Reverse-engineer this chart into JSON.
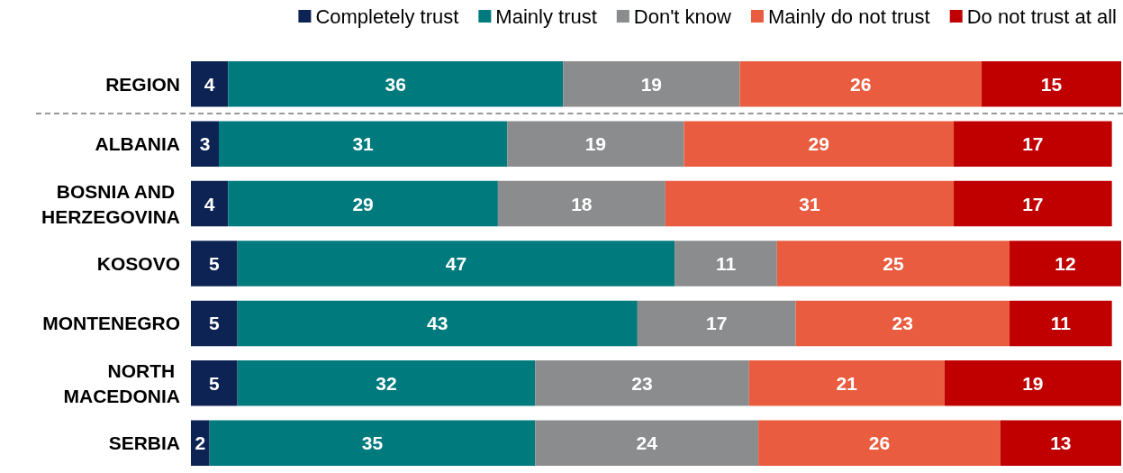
{
  "chart_data": {
    "type": "bar",
    "orientation": "horizontal",
    "stacked": true,
    "categories": [
      "REGION",
      "ALBANIA",
      "BOSNIA AND HERZEGOVINA",
      "KOSOVO",
      "MONTENEGRO",
      "NORTH MACEDONIA",
      "SERBIA"
    ],
    "series": [
      {
        "name": "Completely trust",
        "color": "#0d2354",
        "values": [
          4,
          3,
          4,
          5,
          5,
          5,
          2
        ]
      },
      {
        "name": "Mainly trust",
        "color": "#007a7c",
        "values": [
          36,
          31,
          29,
          47,
          43,
          32,
          35
        ]
      },
      {
        "name": "Don't know",
        "color": "#8a8c8e",
        "values": [
          19,
          19,
          18,
          11,
          17,
          23,
          24
        ]
      },
      {
        "name": "Mainly do not trust",
        "color": "#e95c40",
        "values": [
          26,
          29,
          31,
          25,
          23,
          21,
          26
        ]
      },
      {
        "name": "Do not trust at all",
        "color": "#c00000",
        "values": [
          15,
          17,
          17,
          12,
          11,
          19,
          13
        ]
      }
    ],
    "xlim": [
      0,
      100
    ],
    "tick_labels": "y",
    "data_labels": true,
    "legend": "top right"
  }
}
